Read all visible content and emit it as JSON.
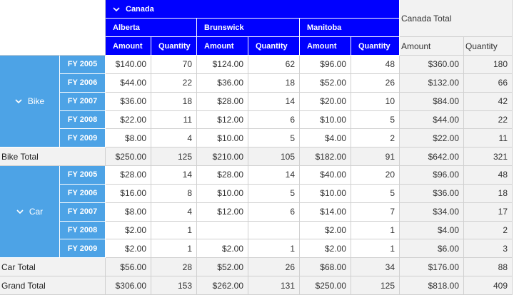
{
  "header": {
    "country": "Canada",
    "provinces": [
      "Alberta",
      "Brunswick",
      "Manitoba"
    ],
    "country_total": "Canada Total",
    "measures": [
      "Amount",
      "Quantity"
    ]
  },
  "groups": [
    {
      "label": "Bike",
      "rows": [
        {
          "year": "FY 2005",
          "values": [
            "$140.00",
            "70",
            "$124.00",
            "62",
            "$96.00",
            "48",
            "$360.00",
            "180"
          ]
        },
        {
          "year": "FY 2006",
          "values": [
            "$44.00",
            "22",
            "$36.00",
            "18",
            "$52.00",
            "26",
            "$132.00",
            "66"
          ]
        },
        {
          "year": "FY 2007",
          "values": [
            "$36.00",
            "18",
            "$28.00",
            "14",
            "$20.00",
            "10",
            "$84.00",
            "42"
          ]
        },
        {
          "year": "FY 2008",
          "values": [
            "$22.00",
            "11",
            "$12.00",
            "6",
            "$10.00",
            "5",
            "$44.00",
            "22"
          ]
        },
        {
          "year": "FY 2009",
          "values": [
            "$8.00",
            "4",
            "$10.00",
            "5",
            "$4.00",
            "2",
            "$22.00",
            "11"
          ]
        }
      ],
      "total_label": "Bike Total",
      "total_values": [
        "$250.00",
        "125",
        "$210.00",
        "105",
        "$182.00",
        "91",
        "$642.00",
        "321"
      ]
    },
    {
      "label": "Car",
      "rows": [
        {
          "year": "FY 2005",
          "values": [
            "$28.00",
            "14",
            "$28.00",
            "14",
            "$40.00",
            "20",
            "$96.00",
            "48"
          ]
        },
        {
          "year": "FY 2006",
          "values": [
            "$16.00",
            "8",
            "$10.00",
            "5",
            "$10.00",
            "5",
            "$36.00",
            "18"
          ]
        },
        {
          "year": "FY 2007",
          "values": [
            "$8.00",
            "4",
            "$12.00",
            "6",
            "$14.00",
            "7",
            "$34.00",
            "17"
          ]
        },
        {
          "year": "FY 2008",
          "values": [
            "$2.00",
            "1",
            "",
            "",
            "$2.00",
            "1",
            "$4.00",
            "2"
          ]
        },
        {
          "year": "FY 2009",
          "values": [
            "$2.00",
            "1",
            "$2.00",
            "1",
            "$2.00",
            "1",
            "$6.00",
            "3"
          ]
        }
      ],
      "total_label": "Car Total",
      "total_values": [
        "$56.00",
        "28",
        "$52.00",
        "26",
        "$68.00",
        "34",
        "$176.00",
        "88"
      ]
    }
  ],
  "grand_total": {
    "label": "Grand Total",
    "values": [
      "$306.00",
      "153",
      "$262.00",
      "131",
      "$250.00",
      "125",
      "$818.00",
      "409"
    ]
  },
  "icons": {
    "expand_chevron": "chevron-down-icon"
  },
  "colors": {
    "column_header": "#0000ff",
    "row_header": "#4da3e6",
    "total_background": "#f2f2f2"
  }
}
